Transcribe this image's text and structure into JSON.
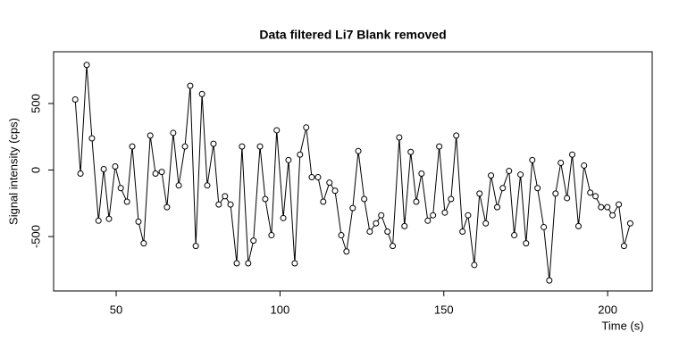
{
  "chart_data": {
    "type": "line",
    "title": "Data filtered Li7 Blank removed",
    "x_label": "Time (s)",
    "y_label": "Signal intensity (cps)",
    "x": [
      37.5,
      39.1,
      41.0,
      42.6,
      44.6,
      46.2,
      47.8,
      49.7,
      51.4,
      53.3,
      54.9,
      56.8,
      58.4,
      60.4,
      62.0,
      63.9,
      65.5,
      67.4,
      69.1,
      71.0,
      72.6,
      74.3,
      76.2,
      77.8,
      79.7,
      81.3,
      83.2,
      84.9,
      86.8,
      88.4,
      90.3,
      91.9,
      93.9,
      95.5,
      97.4,
      99.0,
      101.0,
      102.6,
      104.5,
      106.1,
      108.0,
      109.7,
      111.6,
      113.2,
      115.1,
      116.8,
      118.7,
      120.3,
      122.2,
      123.9,
      125.7,
      127.4,
      129.3,
      130.9,
      132.8,
      134.4,
      136.4,
      138.0,
      139.9,
      141.6,
      143.2,
      145.1,
      146.7,
      148.6,
      150.3,
      152.2,
      153.8,
      155.7,
      157.4,
      159.3,
      160.9,
      162.8,
      164.4,
      166.3,
      168.0,
      169.9,
      171.5,
      173.4,
      175.1,
      177.0,
      178.6,
      180.5,
      182.2,
      184.1,
      185.7,
      187.6,
      189.2,
      191.1,
      192.8,
      194.7,
      196.3,
      198.0,
      199.9,
      201.5,
      203.4,
      205.0,
      206.9
    ],
    "values": [
      530,
      -27,
      790,
      238,
      -381,
      7,
      -367,
      27,
      -136,
      -238,
      177,
      -388,
      -551,
      259,
      -27,
      -14,
      -279,
      279,
      -116,
      177,
      633,
      -571,
      571,
      -116,
      197,
      -259,
      -197,
      -259,
      -701,
      177,
      -701,
      -531,
      177,
      -218,
      -490,
      299,
      -361,
      75,
      -701,
      116,
      320,
      -54,
      -54,
      -238,
      -95,
      -156,
      -490,
      -612,
      -286,
      143,
      -218,
      -463,
      -401,
      -340,
      -463,
      -571,
      245,
      -422,
      136,
      -238,
      -27,
      -381,
      -340,
      177,
      -320,
      -218,
      259,
      -463,
      -340,
      -714,
      -177,
      -401,
      -41,
      -279,
      -136,
      -7,
      -490,
      -34,
      -551,
      75,
      -136,
      -429,
      -830,
      -177,
      54,
      -211,
      116,
      -422,
      34,
      -170,
      -197,
      -279,
      -279,
      -340,
      -259,
      -571,
      -401
    ],
    "color": "#000000",
    "xlim": [
      30.9,
      213.6
    ],
    "ylim": [
      -909,
      889
    ],
    "xticks": [
      50,
      100,
      150,
      200
    ],
    "yticks": [
      -500,
      0,
      500
    ]
  }
}
